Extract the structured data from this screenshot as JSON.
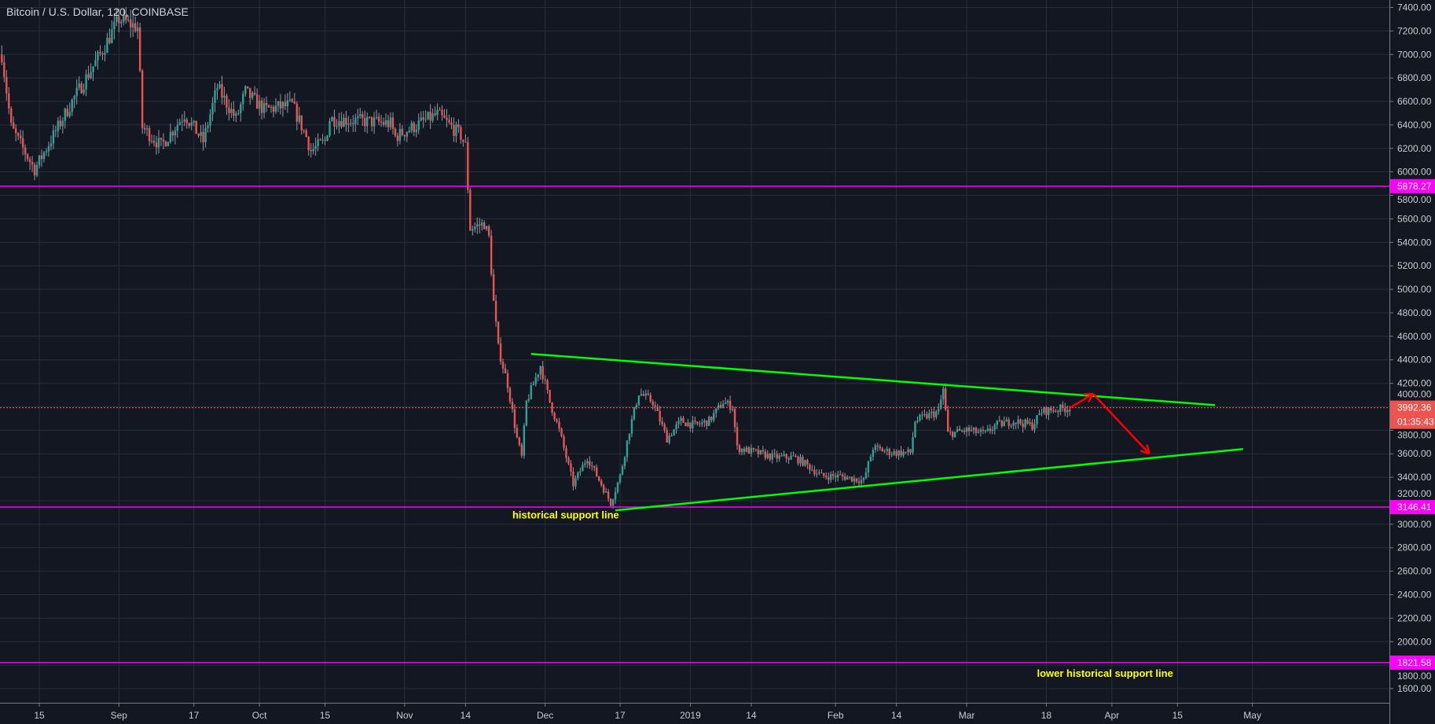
{
  "header": {
    "title": "Bitcoin / U.S. Dollar, 120, COINBASE"
  },
  "colors": {
    "background": "#131722",
    "grid": "#2a2e39",
    "up": "#26a69a",
    "down": "#ef5350",
    "wick": "#9598a1",
    "trendline": "#00ff00",
    "level": "#ff00ff",
    "arrow": "#ff0000",
    "annotation": "#ffff00",
    "last_price": "#ef5350"
  },
  "chart_data": {
    "type": "candlestick",
    "title": "Bitcoin / U.S. Dollar, 120, COINBASE",
    "interval": "120",
    "ylim": [
      1500,
      7450
    ],
    "grid": true,
    "y_ticks": [
      "7400.00",
      "7200.00",
      "7000.00",
      "6800.00",
      "6600.00",
      "6400.00",
      "6200.00",
      "6000.00",
      "5800.00",
      "5600.00",
      "5400.00",
      "5200.00",
      "5000.00",
      "4800.00",
      "4600.00",
      "4400.00",
      "4200.00",
      "4000.00",
      "3800.00",
      "3600.00",
      "3400.00",
      "3200.00",
      "3000.00",
      "2800.00",
      "2600.00",
      "2400.00",
      "2200.00",
      "2000.00",
      "1800.00",
      "1600.00"
    ],
    "x_ticks": [
      {
        "label": "15",
        "date": "2018-08-15"
      },
      {
        "label": "Sep",
        "date": "2018-09-01"
      },
      {
        "label": "17",
        "date": "2018-09-17"
      },
      {
        "label": "Oct",
        "date": "2018-10-01"
      },
      {
        "label": "15",
        "date": "2018-10-15"
      },
      {
        "label": "Nov",
        "date": "2018-11-01"
      },
      {
        "label": "14",
        "date": "2018-11-14"
      },
      {
        "label": "Dec",
        "date": "2018-12-01"
      },
      {
        "label": "17",
        "date": "2018-12-17"
      },
      {
        "label": "2019",
        "date": "2019-01-01"
      },
      {
        "label": "14",
        "date": "2019-01-14"
      },
      {
        "label": "Feb",
        "date": "2019-02-01"
      },
      {
        "label": "14",
        "date": "2019-02-14"
      },
      {
        "label": "Mar",
        "date": "2019-03-01"
      },
      {
        "label": "18",
        "date": "2019-03-18"
      },
      {
        "label": "Apr",
        "date": "2019-04-01"
      },
      {
        "label": "15",
        "date": "2019-04-15"
      },
      {
        "label": "May",
        "date": "2019-05-01"
      }
    ],
    "price_path": [
      [
        "2018-08-07",
        7000
      ],
      [
        "2018-08-09",
        6380
      ],
      [
        "2018-08-14",
        6020
      ],
      [
        "2018-08-22",
        6600
      ],
      [
        "2018-08-28",
        7000
      ],
      [
        "2018-09-01",
        7300
      ],
      [
        "2018-09-05",
        7230
      ],
      [
        "2018-09-06",
        6380
      ],
      [
        "2018-09-10",
        6220
      ],
      [
        "2018-09-15",
        6490
      ],
      [
        "2018-09-19",
        6260
      ],
      [
        "2018-09-22",
        6720
      ],
      [
        "2018-09-26",
        6450
      ],
      [
        "2018-09-28",
        6680
      ],
      [
        "2018-10-02",
        6530
      ],
      [
        "2018-10-08",
        6570
      ],
      [
        "2018-10-11",
        6300
      ],
      [
        "2018-10-12",
        6180
      ],
      [
        "2018-10-15",
        6260
      ],
      [
        "2018-10-16",
        6450
      ],
      [
        "2018-10-24",
        6430
      ],
      [
        "2018-10-29",
        6410
      ],
      [
        "2018-10-30",
        6300
      ],
      [
        "2018-11-06",
        6450
      ],
      [
        "2018-11-08",
        6490
      ],
      [
        "2018-11-13",
        6310
      ],
      [
        "2018-11-14",
        6220
      ],
      [
        "2018-11-15",
        5520
      ],
      [
        "2018-11-18",
        5560
      ],
      [
        "2018-11-19",
        5440
      ],
      [
        "2018-11-20",
        4890
      ],
      [
        "2018-11-21",
        4500
      ],
      [
        "2018-11-23",
        4190
      ],
      [
        "2018-11-25",
        3730
      ],
      [
        "2018-11-26",
        3570
      ],
      [
        "2018-11-27",
        4040
      ],
      [
        "2018-11-30",
        4350
      ],
      [
        "2018-12-02",
        4040
      ],
      [
        "2018-12-04",
        3800
      ],
      [
        "2018-12-07",
        3340
      ],
      [
        "2018-12-10",
        3570
      ],
      [
        "2018-12-13",
        3340
      ],
      [
        "2018-12-15",
        3180
      ],
      [
        "2018-12-17",
        3410
      ],
      [
        "2018-12-19",
        3800
      ],
      [
        "2018-12-21",
        4120
      ],
      [
        "2018-12-24",
        4040
      ],
      [
        "2018-12-27",
        3730
      ],
      [
        "2018-12-30",
        3880
      ],
      [
        "2019-01-02",
        3840
      ],
      [
        "2019-01-05",
        3880
      ],
      [
        "2019-01-08",
        4040
      ],
      [
        "2019-01-10",
        4000
      ],
      [
        "2019-01-11",
        3650
      ],
      [
        "2019-01-15",
        3610
      ],
      [
        "2019-01-19",
        3570
      ],
      [
        "2019-01-23",
        3570
      ],
      [
        "2019-01-25",
        3530
      ],
      [
        "2019-01-29",
        3410
      ],
      [
        "2019-02-02",
        3410
      ],
      [
        "2019-02-07",
        3370
      ],
      [
        "2019-02-09",
        3650
      ],
      [
        "2019-02-13",
        3610
      ],
      [
        "2019-02-17",
        3610
      ],
      [
        "2019-02-18",
        3880
      ],
      [
        "2019-02-23",
        3960
      ],
      [
        "2019-02-24",
        4150
      ],
      [
        "2019-02-25",
        3770
      ],
      [
        "2019-03-01",
        3800
      ],
      [
        "2019-03-05",
        3770
      ],
      [
        "2019-03-07",
        3840
      ],
      [
        "2019-03-11",
        3880
      ],
      [
        "2019-03-15",
        3840
      ],
      [
        "2019-03-17",
        3960
      ],
      [
        "2019-03-23",
        3992.36
      ]
    ],
    "last_price": {
      "value": 3992.36,
      "label": "3992.36",
      "countdown": "01:35:43"
    },
    "horizontal_levels": [
      {
        "value": 5878.27,
        "label": "5878.27"
      },
      {
        "value": 3146.41,
        "label": "3146.41"
      },
      {
        "value": 1821.58,
        "label": "1821.58"
      }
    ],
    "trendlines": [
      {
        "from": [
          "2018-11-28",
          4450
        ],
        "to": [
          "2019-04-23",
          4014
        ]
      },
      {
        "from": [
          "2018-12-16",
          3118
        ],
        "to": [
          "2019-04-29",
          3640
        ]
      }
    ],
    "arrows": [
      {
        "from": [
          "2019-03-23",
          3990
        ],
        "to": [
          "2019-03-28",
          4110
        ]
      },
      {
        "from": [
          "2019-03-28",
          4110
        ],
        "to": [
          "2019-04-09",
          3600
        ]
      }
    ],
    "annotations": [
      {
        "text": "historical support line",
        "date": "2018-11-24",
        "price": 3050
      },
      {
        "text": "lower historical support line",
        "date": "2019-03-16",
        "price": 1700
      }
    ]
  }
}
